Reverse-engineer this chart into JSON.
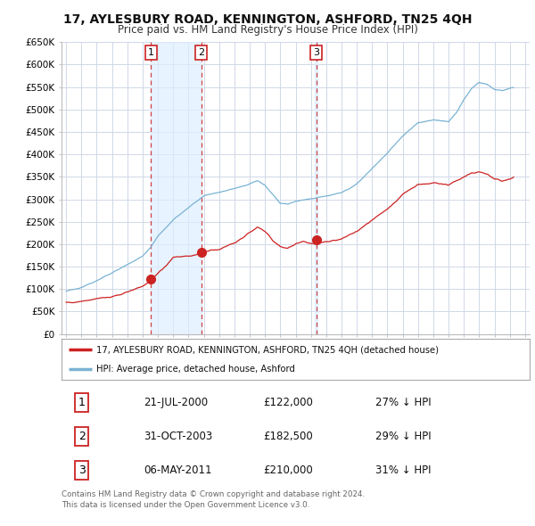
{
  "title": "17, AYLESBURY ROAD, KENNINGTON, ASHFORD, TN25 4QH",
  "subtitle": "Price paid vs. HM Land Registry's House Price Index (HPI)",
  "background_color": "#ffffff",
  "grid_color": "#d0d8e8",
  "hpi_color": "#7ab3d4",
  "price_color": "#cc2222",
  "vline_color": "#cc2222",
  "shade_color": "#ddeeff",
  "ylim": [
    0,
    650000
  ],
  "yticks": [
    0,
    50000,
    100000,
    150000,
    200000,
    250000,
    300000,
    350000,
    400000,
    450000,
    500000,
    550000,
    600000,
    650000
  ],
  "ytick_labels": [
    "£0",
    "£50K",
    "£100K",
    "£150K",
    "£200K",
    "£250K",
    "£300K",
    "£350K",
    "£400K",
    "£450K",
    "£500K",
    "£550K",
    "£600K",
    "£650K"
  ],
  "xlim_start": 1994.7,
  "xlim_end": 2025.3,
  "sale_dates": [
    2000.55,
    2003.83,
    2011.35
  ],
  "sale_prices": [
    122000,
    182500,
    210000
  ],
  "sale_labels": [
    "1",
    "2",
    "3"
  ],
  "legend_label_price": "17, AYLESBURY ROAD, KENNINGTON, ASHFORD, TN25 4QH (detached house)",
  "legend_label_hpi": "HPI: Average price, detached house, Ashford",
  "table_data": [
    [
      "1",
      "21-JUL-2000",
      "£122,000",
      "27% ↓ HPI"
    ],
    [
      "2",
      "31-OCT-2003",
      "£182,500",
      "29% ↓ HPI"
    ],
    [
      "3",
      "06-MAY-2011",
      "£210,000",
      "31% ↓ HPI"
    ]
  ],
  "footer": "Contains HM Land Registry data © Crown copyright and database right 2024.\nThis data is licensed under the Open Government Licence v3.0."
}
